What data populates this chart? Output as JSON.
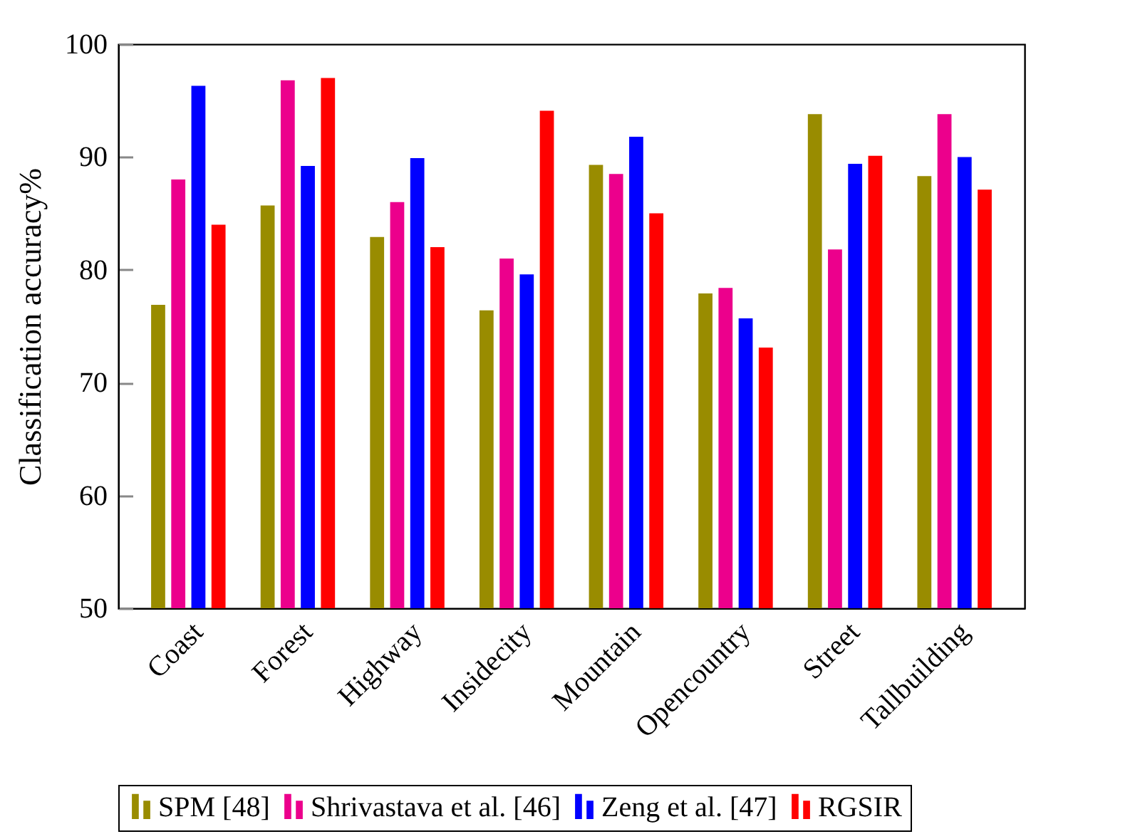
{
  "chart_data": {
    "type": "bar",
    "ylabel": "Classification accuracy%",
    "categories": [
      "Coast",
      "Forest",
      "Highway",
      "Insidecity",
      "Mountain",
      "Opencountry",
      "Street",
      "Tallbuilding"
    ],
    "series": [
      {
        "name": "SPM [48]",
        "color": "#998c00",
        "values": [
          76.9,
          85.7,
          82.9,
          76.4,
          89.3,
          77.9,
          93.8,
          88.3
        ]
      },
      {
        "name": "Shrivastava et al. [46]",
        "color": "#ec008c",
        "values": [
          88,
          96.8,
          86,
          81,
          88.5,
          78.4,
          81.8,
          93.8
        ]
      },
      {
        "name": "Zeng et al. [47]",
        "color": "#0000ff",
        "values": [
          96.3,
          89.2,
          89.9,
          79.6,
          91.8,
          75.7,
          89.4,
          90
        ]
      },
      {
        "name": "RGSIR",
        "color": "#ff0000",
        "values": [
          84,
          97,
          82,
          94.1,
          85,
          73.1,
          90.1,
          87.1
        ]
      }
    ],
    "ylim": [
      50,
      100
    ],
    "yticks": [
      50,
      60,
      70,
      80,
      90,
      100
    ],
    "grid": false,
    "legend": "bottom"
  }
}
